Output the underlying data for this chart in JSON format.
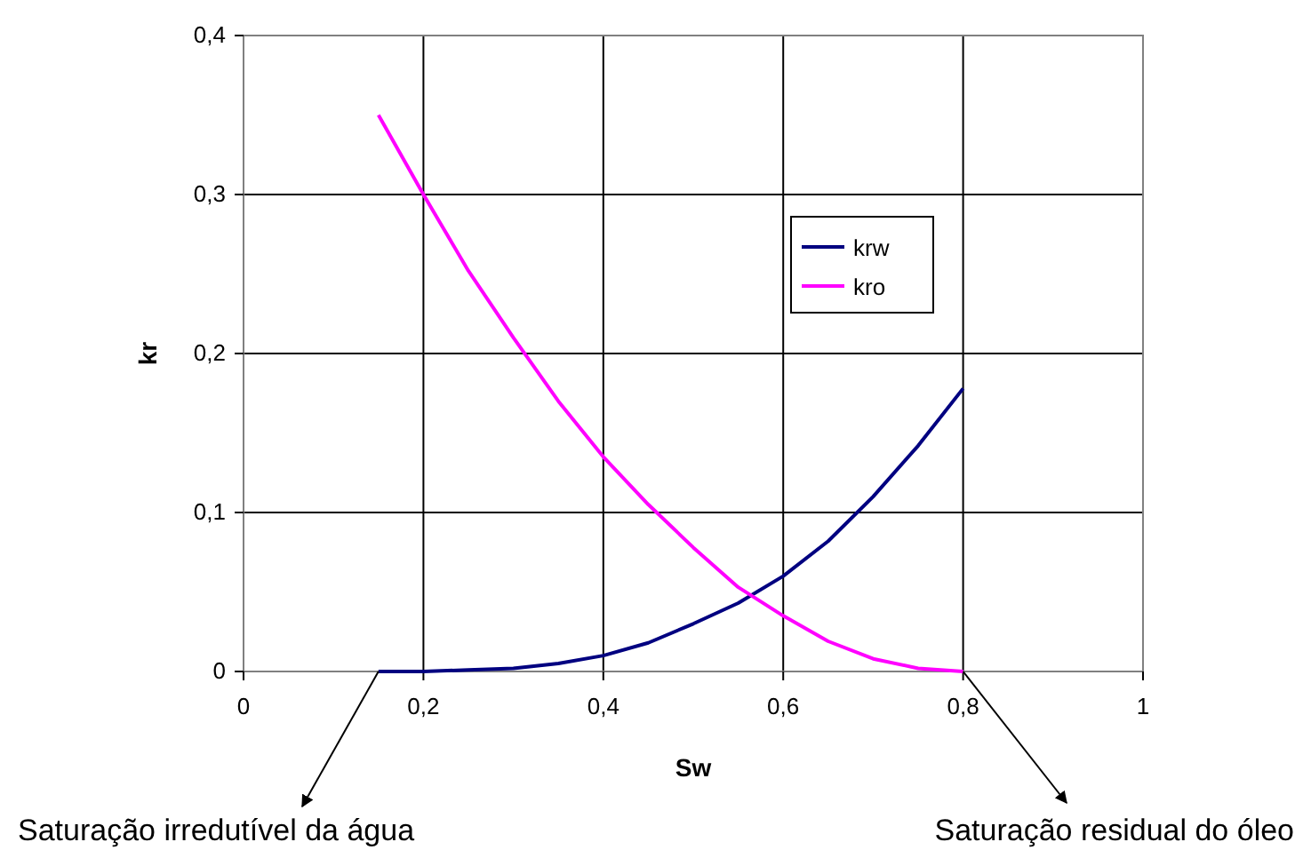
{
  "chart_data": {
    "type": "line",
    "xlabel": "Sw",
    "ylabel": "kr",
    "x": [
      0.15,
      0.2,
      0.25,
      0.3,
      0.35,
      0.4,
      0.45,
      0.5,
      0.55,
      0.6,
      0.65,
      0.7,
      0.75,
      0.8
    ],
    "series": [
      {
        "name": "krw",
        "color": "#000080",
        "values": [
          0,
          0,
          0.001,
          0.002,
          0.005,
          0.01,
          0.018,
          0.03,
          0.043,
          0.06,
          0.082,
          0.11,
          0.142,
          0.178
        ]
      },
      {
        "name": "kro",
        "color": "#ff00ff",
        "values": [
          0.35,
          0.3,
          0.252,
          0.21,
          0.17,
          0.135,
          0.105,
          0.078,
          0.053,
          0.035,
          0.019,
          0.008,
          0.002,
          0
        ]
      }
    ],
    "xlim": [
      0,
      1
    ],
    "ylim": [
      0,
      0.4
    ],
    "xticks": [
      0,
      {
        "value": 0.2,
        "label": "0,2"
      },
      {
        "value": 0.4,
        "label": "0,4"
      },
      {
        "value": 0.6,
        "label": "0,6"
      },
      {
        "value": 0.8,
        "label": "0,8"
      },
      1
    ],
    "yticks": [
      0,
      {
        "value": 0.1,
        "label": "0,1"
      },
      {
        "value": 0.2,
        "label": "0,2"
      },
      {
        "value": 0.3,
        "label": "0,3"
      },
      {
        "value": 0.4,
        "label": "0,4"
      }
    ],
    "grid": true,
    "legend": "right",
    "marker": "none",
    "line_style": "solid",
    "annotations": [
      {
        "text": "Saturação irredutível da água",
        "x": 0.15,
        "y": 0
      },
      {
        "text": "Saturação residual do óleo",
        "x": 0.8,
        "y": 0
      }
    ]
  }
}
